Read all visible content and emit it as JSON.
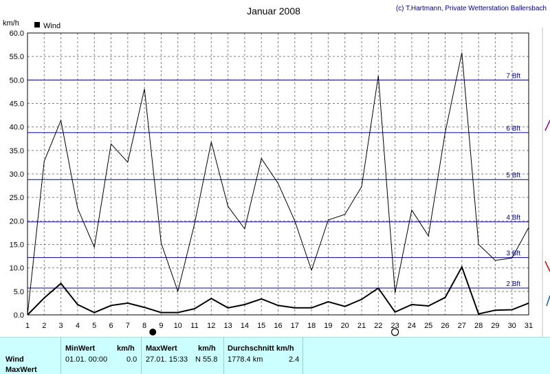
{
  "header": {
    "title": "Januar 2008",
    "credit": "(c) T.Hartmann, Private Wetterstation Ballersbach",
    "unit": "km/h",
    "legend_label": "Wind"
  },
  "chart_data": {
    "type": "line",
    "title": "Januar 2008",
    "ylabel": "km/h",
    "ylim": [
      0,
      60
    ],
    "yticks": [
      "0.0",
      "5.0",
      "10.0",
      "15.0",
      "20.0",
      "25.0",
      "30.0",
      "35.0",
      "40.0",
      "45.0",
      "50.0",
      "55.0",
      "60.0"
    ],
    "categories": [
      "1",
      "2",
      "3",
      "4",
      "5",
      "6",
      "7",
      "8",
      "9",
      "10",
      "11",
      "12",
      "13",
      "14",
      "15",
      "16",
      "17",
      "18",
      "19",
      "20",
      "21",
      "22",
      "23",
      "24",
      "25",
      "26",
      "27",
      "28",
      "29",
      "30",
      "31"
    ],
    "grid": true,
    "legend": "top-left",
    "series": [
      {
        "name": "Wind",
        "values": [
          0.0,
          3.6,
          6.7,
          2.2,
          0.5,
          2.0,
          2.5,
          1.6,
          0.5,
          0.5,
          1.3,
          3.5,
          1.5,
          2.2,
          3.4,
          2.0,
          1.5,
          1.5,
          2.8,
          1.8,
          3.3,
          5.7,
          0.6,
          2.2,
          1.9,
          3.7,
          10.2,
          0.2,
          1.0,
          1.1,
          2.5
        ],
        "color": "#000000"
      },
      {
        "name": "MaxWert",
        "values": [
          0.0,
          32.7,
          41.4,
          22.7,
          14.4,
          36.4,
          32.5,
          48.1,
          15.3,
          5.0,
          19.4,
          36.8,
          23.1,
          18.3,
          33.3,
          28.0,
          20.0,
          9.5,
          20.2,
          21.4,
          27.3,
          50.9,
          4.7,
          22.3,
          16.8,
          38.8,
          55.8,
          15.0,
          11.6,
          12.1,
          18.6
        ],
        "color": "#000000"
      }
    ],
    "beaufort_lines": [
      {
        "label": "2 Bft",
        "value": 5.7
      },
      {
        "label": "3 Bft",
        "value": 12.2
      },
      {
        "label": "4 Bft",
        "value": 19.8
      },
      {
        "label": "5 Bft",
        "value": 28.8
      },
      {
        "label": "6 Bft",
        "value": 38.8
      },
      {
        "label": "7 Bft",
        "value": 50.0
      }
    ],
    "moon_markers": [
      {
        "day": 8.5,
        "phase": "new"
      },
      {
        "day": 23,
        "phase": "full"
      }
    ]
  },
  "footer": {
    "row_labels": [
      "Wind",
      "MaxWert"
    ],
    "min_header": "MinWert",
    "min_unit": "km/h",
    "min_date": "01.01.  00:00",
    "min_value": "0.0",
    "max_header": "MaxWert",
    "max_unit": "km/h",
    "max_date": "27.01.  15:33",
    "max_value": "N 55.8",
    "avg_header": "Durchschnitt km/h",
    "avg_distance": "1778.4 km",
    "avg_value": "2.4"
  },
  "colors": {
    "background": "#ffffff",
    "plot_border": "#000000",
    "grid": "#808080",
    "beaufort": "#00008b",
    "footer_bg": "#ccffff"
  }
}
